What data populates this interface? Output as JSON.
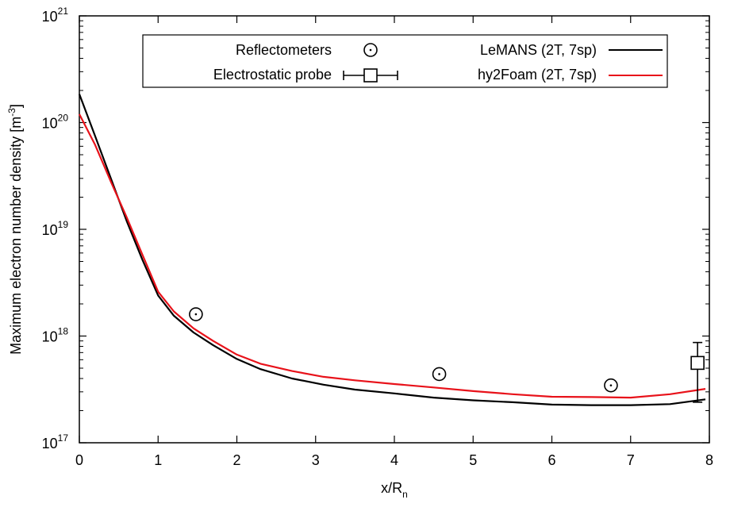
{
  "chart_data": {
    "type": "line",
    "xlabel": {
      "base": "x/R",
      "sub": "n"
    },
    "ylabel": {
      "text": "Maximum electron number density  [m",
      "sup": "-3",
      "close": "]"
    },
    "xlim": [
      0,
      8
    ],
    "ylim": [
      1e+17,
      1e+21
    ],
    "yscale": "log",
    "grid": false,
    "legend_position": "top-right",
    "x_ticks": [
      "0",
      "1",
      "2",
      "3",
      "4",
      "5",
      "6",
      "7",
      "8"
    ],
    "y_ticks": [
      {
        "base": "10",
        "exp": "17"
      },
      {
        "base": "10",
        "exp": "18"
      },
      {
        "base": "10",
        "exp": "19"
      },
      {
        "base": "10",
        "exp": "20"
      },
      {
        "base": "10",
        "exp": "21"
      }
    ],
    "series": [
      {
        "name": "LeMANS (2T, 7sp)",
        "kind": "line",
        "color": "#000000",
        "x": [
          0,
          0.2,
          0.4,
          0.6,
          0.8,
          1.0,
          1.2,
          1.45,
          1.7,
          2.0,
          2.3,
          2.7,
          3.1,
          3.5,
          4.0,
          4.5,
          5.0,
          5.5,
          6.0,
          6.5,
          7.0,
          7.5,
          7.95
        ],
        "y": [
          1.85e+20,
          7.5e+19,
          3e+19,
          1.2e+19,
          5.2e+18,
          2.4e+18,
          1.55e+18,
          1.08e+18,
          8.2e+17,
          6.1e+17,
          4.9e+17,
          4e+17,
          3.5e+17,
          3.15e+17,
          2.9e+17,
          2.65e+17,
          2.5e+17,
          2.4e+17,
          2.28e+17,
          2.25e+17,
          2.25e+17,
          2.3e+17,
          2.55e+17
        ]
      },
      {
        "name": "hy2Foam (2T, 7sp)",
        "kind": "line",
        "color": "#e8121a",
        "x": [
          0,
          0.2,
          0.4,
          0.6,
          0.8,
          1.0,
          1.2,
          1.45,
          1.7,
          2.0,
          2.3,
          2.7,
          3.1,
          3.5,
          4.0,
          4.5,
          5.0,
          5.5,
          6.0,
          6.5,
          7.0,
          7.5,
          7.95
        ],
        "y": [
          1.2e+20,
          6.2e+19,
          2.8e+19,
          1.3e+19,
          5.8e+18,
          2.6e+18,
          1.7e+18,
          1.18e+18,
          9e+17,
          6.7e+17,
          5.5e+17,
          4.7e+17,
          4.15e+17,
          3.85e+17,
          3.55e+17,
          3.3e+17,
          3.05e+17,
          2.85e+17,
          2.7e+17,
          2.68e+17,
          2.65e+17,
          2.85e+17,
          3.2e+17
        ]
      },
      {
        "name": "Reflectometers",
        "kind": "points",
        "marker": "circle-dot",
        "color": "#000000",
        "x": [
          1.48,
          4.57,
          6.75
        ],
        "y": [
          1.6e+18,
          4.4e+17,
          3.45e+17
        ]
      },
      {
        "name": "Electrostatic probe",
        "kind": "points",
        "marker": "square-errorbar",
        "color": "#000000",
        "x": [
          7.85
        ],
        "y": [
          5.6e+17
        ],
        "y_err_low": [
          2.4e+17
        ],
        "y_err_high": [
          8.7e+17
        ]
      }
    ]
  }
}
